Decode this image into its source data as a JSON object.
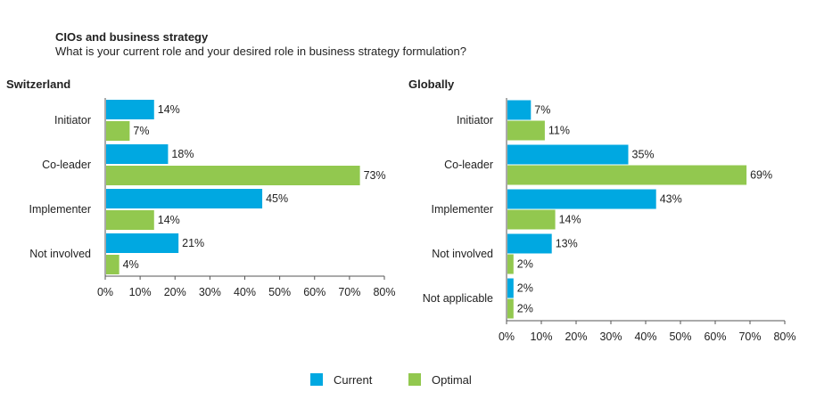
{
  "header": {
    "title": "CIOs and business strategy",
    "subtitle": "What is your current role and your desired role in business strategy formulation?"
  },
  "colors": {
    "current": "#00a8e1",
    "optimal": "#92c84f",
    "axis": "#555555"
  },
  "legend": {
    "position": "bottom",
    "items": [
      "Current",
      "Optimal"
    ]
  },
  "chart_data": [
    {
      "type": "bar",
      "orientation": "horizontal",
      "title": "Switzerland",
      "categories": [
        "Initiator",
        "Co-leader",
        "Implementer",
        "Not involved"
      ],
      "series": [
        {
          "name": "Current",
          "values": [
            14,
            18,
            45,
            21
          ],
          "labels": [
            "14%",
            "18%",
            "45%",
            "21%"
          ]
        },
        {
          "name": "Optimal",
          "values": [
            7,
            73,
            14,
            4
          ],
          "labels": [
            "7%",
            "73%",
            "14%",
            "4%"
          ]
        }
      ],
      "xlim": [
        0,
        80
      ],
      "xticks": [
        "0%",
        "10%",
        "20%",
        "30%",
        "40%",
        "50%",
        "60%",
        "70%",
        "80%"
      ],
      "grid": false
    },
    {
      "type": "bar",
      "orientation": "horizontal",
      "title": "Globally",
      "categories": [
        "Initiator",
        "Co-leader",
        "Implementer",
        "Not involved",
        "Not applicable"
      ],
      "series": [
        {
          "name": "Current",
          "values": [
            7,
            35,
            43,
            13,
            2
          ],
          "labels": [
            "7%",
            "35%",
            "43%",
            "13%",
            "2%"
          ]
        },
        {
          "name": "Optimal",
          "values": [
            11,
            69,
            14,
            2,
            2
          ],
          "labels": [
            "11%",
            "69%",
            "14%",
            "2%",
            "2%"
          ]
        }
      ],
      "xlim": [
        0,
        80
      ],
      "xticks": [
        "0%",
        "10%",
        "20%",
        "30%",
        "40%",
        "50%",
        "60%",
        "70%",
        "80%"
      ],
      "grid": false
    }
  ]
}
